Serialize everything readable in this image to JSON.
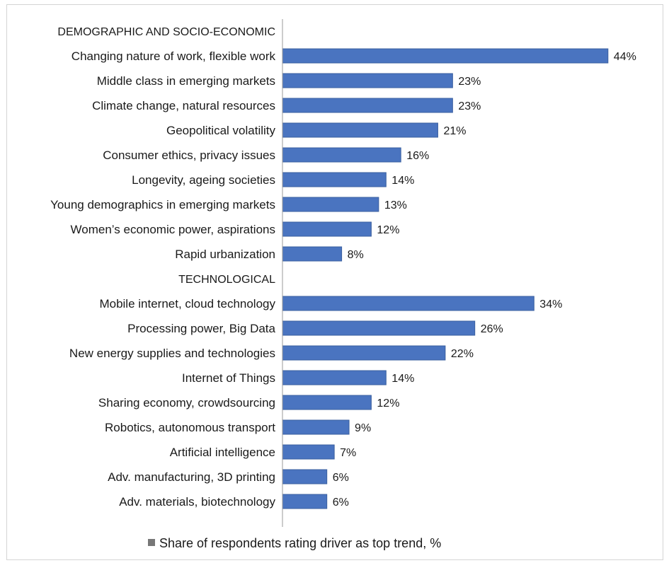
{
  "chart_data": {
    "type": "bar",
    "orientation": "horizontal",
    "groups": [
      {
        "name": "DEMOGRAPHIC AND SOCIO-ECONOMIC",
        "categories": [
          "Changing nature of work, flexible work",
          "Middle class in emerging markets",
          "Climate change, natural resources",
          "Geopolitical volatility",
          "Consumer ethics, privacy issues",
          "Longevity, ageing societies",
          "Young demographics in emerging markets",
          "Women’s economic power, aspirations",
          "Rapid urbanization"
        ],
        "values": [
          44,
          23,
          23,
          21,
          16,
          14,
          13,
          12,
          8
        ],
        "value_labels": [
          "44%",
          "23%",
          "23%",
          "21%",
          "16%",
          "14%",
          "13%",
          "12%",
          "8%"
        ]
      },
      {
        "name": "TECHNOLOGICAL",
        "categories": [
          "Mobile internet, cloud technology",
          "Processing power, Big Data",
          "New energy supplies and technologies",
          "Internet of Things",
          "Sharing economy, crowdsourcing",
          "Robotics, autonomous transport",
          "Artificial intelligence",
          "Adv. manufacturing, 3D printing",
          "Adv. materials, biotechnology"
        ],
        "values": [
          34,
          26,
          22,
          14,
          12,
          9,
          7,
          6,
          6
        ],
        "value_labels": [
          "34%",
          "26%",
          "22%",
          "14%",
          "12%",
          "9%",
          "7%",
          "6%",
          "6%"
        ]
      }
    ],
    "series": [
      {
        "name": "Share of respondents rating driver as top trend, %"
      }
    ],
    "xlim": [
      0,
      48
    ],
    "grid": false,
    "legend": "bottom",
    "colors": {
      "bar": "#4a74c0",
      "bar_edge": "#3a5f9f",
      "axis": "#999999"
    }
  }
}
